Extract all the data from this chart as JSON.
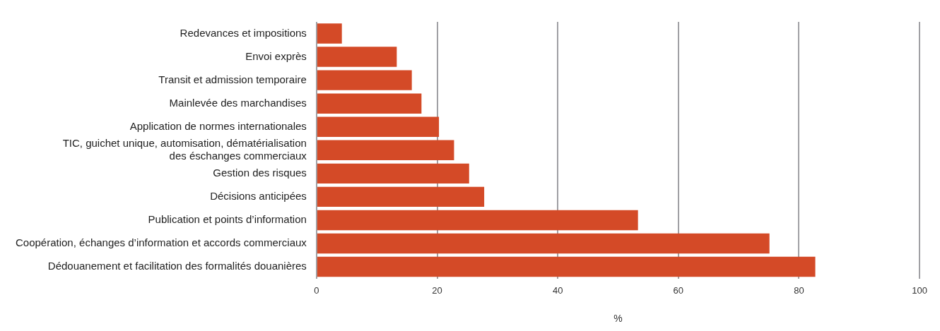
{
  "chart_data": {
    "type": "bar",
    "orientation": "horizontal",
    "xlabel": "%",
    "categories": [
      "Redevances et impositions",
      "Envoi exprès",
      "Transit et admission temporaire",
      "Mainlevée des marchandises",
      "Application de normes internationales",
      "TIC, guichet unique, automisation, dématérialisation\ndes éschanges commerciaux",
      "Gestion des risques",
      "Décisions anticipées",
      "Publication et points d’information",
      "Coopération, échanges d’information et accords commerciaux",
      "Dédouanement et facilitation des formalités douanières"
    ],
    "values": [
      4.2,
      13.3,
      15.8,
      17.4,
      20.3,
      22.8,
      25.3,
      27.8,
      53.3,
      75.1,
      82.7
    ],
    "color": "#d44a27",
    "xlim": [
      0,
      100
    ],
    "xticks": [
      0,
      20,
      40,
      60,
      80,
      100
    ],
    "grid": "x",
    "legend": false
  }
}
